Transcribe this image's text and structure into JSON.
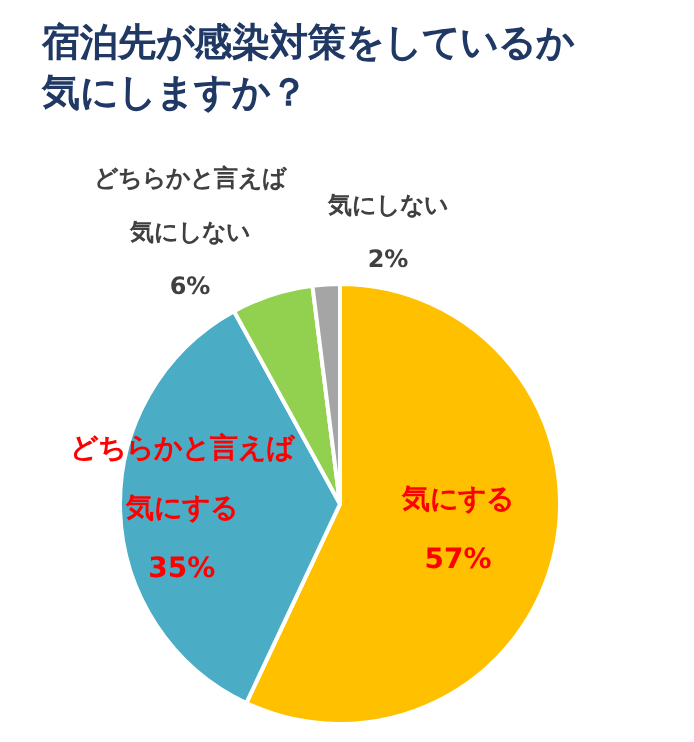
{
  "chart_data": {
    "type": "pie",
    "title": "宿泊先が感染対策をしているか気にしますか？",
    "categories": [
      "気にする",
      "どちらかと言えば気にする",
      "どちらかと言えば気にしない",
      "気にしない"
    ],
    "values": [
      57,
      35,
      6,
      2
    ],
    "value_labels": [
      "57%",
      "35%",
      "6%",
      "2%"
    ],
    "colors": [
      "#ffc000",
      "#4bacc6",
      "#92d050",
      "#a5a5a5"
    ],
    "legend": false
  }
}
